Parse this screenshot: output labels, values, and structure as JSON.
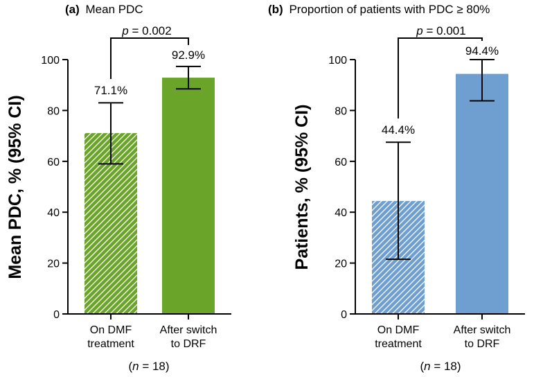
{
  "chart_data": [
    {
      "type": "bar",
      "panel": "(a)",
      "title": "Mean PDC",
      "ylabel": "Mean  PDC, % (95% CI)",
      "ylim": [
        0,
        100
      ],
      "yticks": [
        0,
        20,
        40,
        60,
        80,
        100
      ],
      "categories": [
        [
          "On DMF",
          "treatment"
        ],
        [
          "After switch",
          "to DRF"
        ]
      ],
      "values": [
        71.1,
        92.9
      ],
      "ci_low": [
        59.0,
        88.5
      ],
      "ci_high": [
        83.0,
        97.3
      ],
      "value_labels": [
        "71.1%",
        "92.9%"
      ],
      "hatched": [
        true,
        false
      ],
      "color": "#6aa428",
      "p_label": "p",
      "p_value": " = 0.002",
      "n_prefix": "(",
      "n_label": "n",
      "n_value": " = 18)"
    },
    {
      "type": "bar",
      "panel": "(b)",
      "title": "Proportion of patients with PDC ≥ 80%",
      "ylabel": "Patients, % (95% CI)",
      "ylim": [
        0,
        100
      ],
      "yticks": [
        0,
        20,
        40,
        60,
        80,
        100
      ],
      "categories": [
        [
          "On DMF",
          "treatment"
        ],
        [
          "After switch",
          "to DRF"
        ]
      ],
      "values": [
        44.4,
        94.4
      ],
      "ci_low": [
        21.5,
        83.8
      ],
      "ci_high": [
        67.5,
        100
      ],
      "value_labels": [
        "44.4%",
        "94.4%"
      ],
      "hatched": [
        true,
        false
      ],
      "color": "#6f9fd0",
      "p_label": "p",
      "p_value": " = 0.001",
      "n_prefix": "(",
      "n_label": "n",
      "n_value": " = 18)"
    }
  ]
}
